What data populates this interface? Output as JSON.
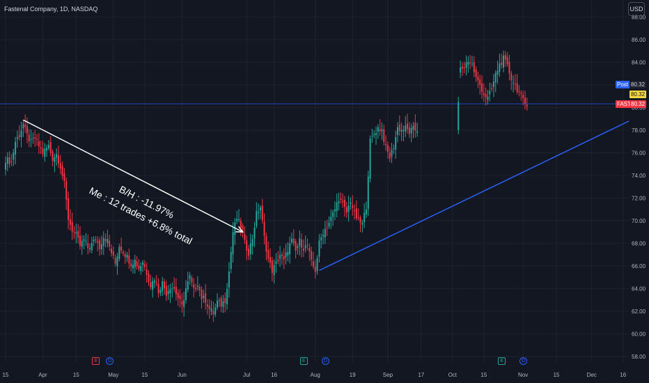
{
  "header": {
    "title": "Fastenal Company, 1D, NASDAQ",
    "currency_button": "USD"
  },
  "price_labels": {
    "post_tag": "Post",
    "post_value": "80.32",
    "mid_value": "80.32",
    "symbol_tag": "FAST",
    "symbol_value": "80.32"
  },
  "events": [
    {
      "type": "E",
      "label": "E",
      "date_index": 46
    },
    {
      "type": "D",
      "label": "D",
      "date_index": 53
    },
    {
      "type": "E",
      "label": "E",
      "date_index": 152
    },
    {
      "type": "D",
      "label": "D",
      "date_index": 163
    },
    {
      "type": "E",
      "label": "E",
      "date_index": 253
    },
    {
      "type": "D",
      "label": "D",
      "date_index": 264
    }
  ],
  "annotations": {
    "line1": "B/H : -11.97%",
    "line2": "Me : 12 trades +6.8% total"
  },
  "colors": {
    "up": "#26a69a",
    "down": "#f23645",
    "background": "#131722",
    "grid": "#1f2330",
    "trendline": "#2962ff",
    "arrow": "#ffffff",
    "post_badge": "#2962ff",
    "mid_badge": "#f5d742",
    "symbol_badge": "#f23645"
  },
  "chart_data": {
    "type": "candlestick",
    "title": "Fastenal Company, 1D, NASDAQ",
    "ylim": [
      57.5,
      89.5
    ],
    "y_ticks": [
      "58.00",
      "60.00",
      "62.00",
      "64.00",
      "66.00",
      "68.00",
      "70.00",
      "72.00",
      "74.00",
      "76.00",
      "78.00",
      "80.00",
      "82.00",
      "84.00",
      "86.00",
      "88.00"
    ],
    "x_ticks": [
      {
        "label": "15",
        "i": 0
      },
      {
        "label": "Apr",
        "i": 19
      },
      {
        "label": "15",
        "i": 36
      },
      {
        "label": "May",
        "i": 55
      },
      {
        "label": "15",
        "i": 71
      },
      {
        "label": "Jun",
        "i": 90
      },
      {
        "label": "Jul",
        "i": 123
      },
      {
        "label": "16",
        "i": 137
      },
      {
        "label": "Aug",
        "i": 158
      },
      {
        "label": "19",
        "i": 177
      },
      {
        "label": "Sep",
        "i": 195
      },
      {
        "label": "17",
        "i": 212
      },
      {
        "label": "Oct",
        "i": 228
      },
      {
        "label": "15",
        "i": 244
      },
      {
        "label": "Nov",
        "i": 264
      },
      {
        "label": "15",
        "i": 281
      },
      {
        "label": "Dec",
        "i": 299
      },
      {
        "label": "16",
        "i": 315
      }
    ],
    "candles_anchor_closes": [
      [
        0,
        75.4
      ],
      [
        3,
        75.2
      ],
      [
        5,
        77.0
      ],
      [
        7,
        77.6
      ],
      [
        9,
        78.5
      ],
      [
        11,
        77.5
      ],
      [
        13,
        76.9
      ],
      [
        15,
        77.3
      ],
      [
        17,
        76.6
      ],
      [
        19,
        76.0
      ],
      [
        22,
        76.6
      ],
      [
        24,
        75.5
      ],
      [
        26,
        75.9
      ],
      [
        28,
        74.8
      ],
      [
        30,
        73.2
      ],
      [
        32,
        70.2
      ],
      [
        34,
        69.2
      ],
      [
        36,
        68.7
      ],
      [
        38,
        67.8
      ],
      [
        40,
        68.3
      ],
      [
        42,
        67.6
      ],
      [
        44,
        67.9
      ],
      [
        46,
        68.4
      ],
      [
        48,
        67.7
      ],
      [
        50,
        68.6
      ],
      [
        52,
        68.2
      ],
      [
        54,
        67.2
      ],
      [
        56,
        66.2
      ],
      [
        58,
        67.8
      ],
      [
        60,
        67.3
      ],
      [
        62,
        66.8
      ],
      [
        64,
        66.2
      ],
      [
        66,
        66.5
      ],
      [
        68,
        65.8
      ],
      [
        70,
        66.4
      ],
      [
        72,
        65.4
      ],
      [
        74,
        64.3
      ],
      [
        76,
        64.9
      ],
      [
        78,
        63.8
      ],
      [
        80,
        64.5
      ],
      [
        82,
        63.6
      ],
      [
        84,
        64.2
      ],
      [
        86,
        64.0
      ],
      [
        88,
        63.2
      ],
      [
        90,
        62.4
      ],
      [
        92,
        64.0
      ],
      [
        94,
        65.0
      ],
      [
        96,
        63.8
      ],
      [
        98,
        64.5
      ],
      [
        100,
        63.2
      ],
      [
        102,
        63.0
      ],
      [
        104,
        62.2
      ],
      [
        106,
        61.8
      ],
      [
        108,
        62.8
      ],
      [
        110,
        62.6
      ],
      [
        112,
        63.0
      ],
      [
        114,
        65.5
      ],
      [
        116,
        69.0
      ],
      [
        118,
        70.2
      ],
      [
        120,
        69.5
      ],
      [
        122,
        68.0
      ],
      [
        124,
        67.2
      ],
      [
        126,
        68.5
      ],
      [
        128,
        70.6
      ],
      [
        130,
        71.2
      ],
      [
        132,
        68.5
      ],
      [
        134,
        66.6
      ],
      [
        136,
        65.6
      ],
      [
        138,
        66.2
      ],
      [
        140,
        67.0
      ],
      [
        142,
        66.4
      ],
      [
        144,
        67.5
      ],
      [
        146,
        68.2
      ],
      [
        148,
        67.3
      ],
      [
        150,
        68.2
      ],
      [
        152,
        67.6
      ],
      [
        154,
        67.8
      ],
      [
        156,
        66.3
      ],
      [
        158,
        65.6
      ],
      [
        160,
        68.0
      ],
      [
        162,
        69.0
      ],
      [
        164,
        69.5
      ],
      [
        166,
        70.2
      ],
      [
        168,
        71.0
      ],
      [
        170,
        72.0
      ],
      [
        172,
        71.4
      ],
      [
        174,
        70.7
      ],
      [
        176,
        71.8
      ],
      [
        178,
        70.6
      ],
      [
        180,
        70.0
      ],
      [
        182,
        69.7
      ],
      [
        184,
        71.3
      ],
      [
        186,
        77.0
      ],
      [
        188,
        77.7
      ],
      [
        190,
        78.2
      ],
      [
        192,
        78.0
      ],
      [
        194,
        76.4
      ],
      [
        196,
        75.6
      ],
      [
        198,
        76.6
      ],
      [
        200,
        78.2
      ],
      [
        202,
        78.0
      ],
      [
        204,
        78.2
      ],
      [
        206,
        77.8
      ],
      [
        208,
        78.1
      ],
      [
        210,
        77.9
      ]
    ],
    "candles_second_segment_closes": [
      [
        232,
        83.4
      ],
      [
        234,
        83.6
      ],
      [
        236,
        84.2
      ],
      [
        238,
        83.8
      ],
      [
        240,
        82.6
      ],
      [
        242,
        82.0
      ],
      [
        244,
        81.2
      ],
      [
        246,
        80.8
      ],
      [
        248,
        81.6
      ],
      [
        250,
        82.9
      ],
      [
        252,
        83.8
      ],
      [
        254,
        84.3
      ],
      [
        256,
        83.6
      ],
      [
        258,
        82.6
      ],
      [
        260,
        82.0
      ],
      [
        262,
        81.3
      ],
      [
        264,
        80.6
      ],
      [
        266,
        80.1
      ]
    ],
    "last_price": 80.32,
    "arrow": {
      "from_i": 9,
      "from_y": 78.9,
      "to_i": 121,
      "to_y": 69.0
    },
    "trendline": {
      "from_i": 160,
      "from_y": 65.6,
      "to_i": 318,
      "to_y": 78.8
    }
  }
}
